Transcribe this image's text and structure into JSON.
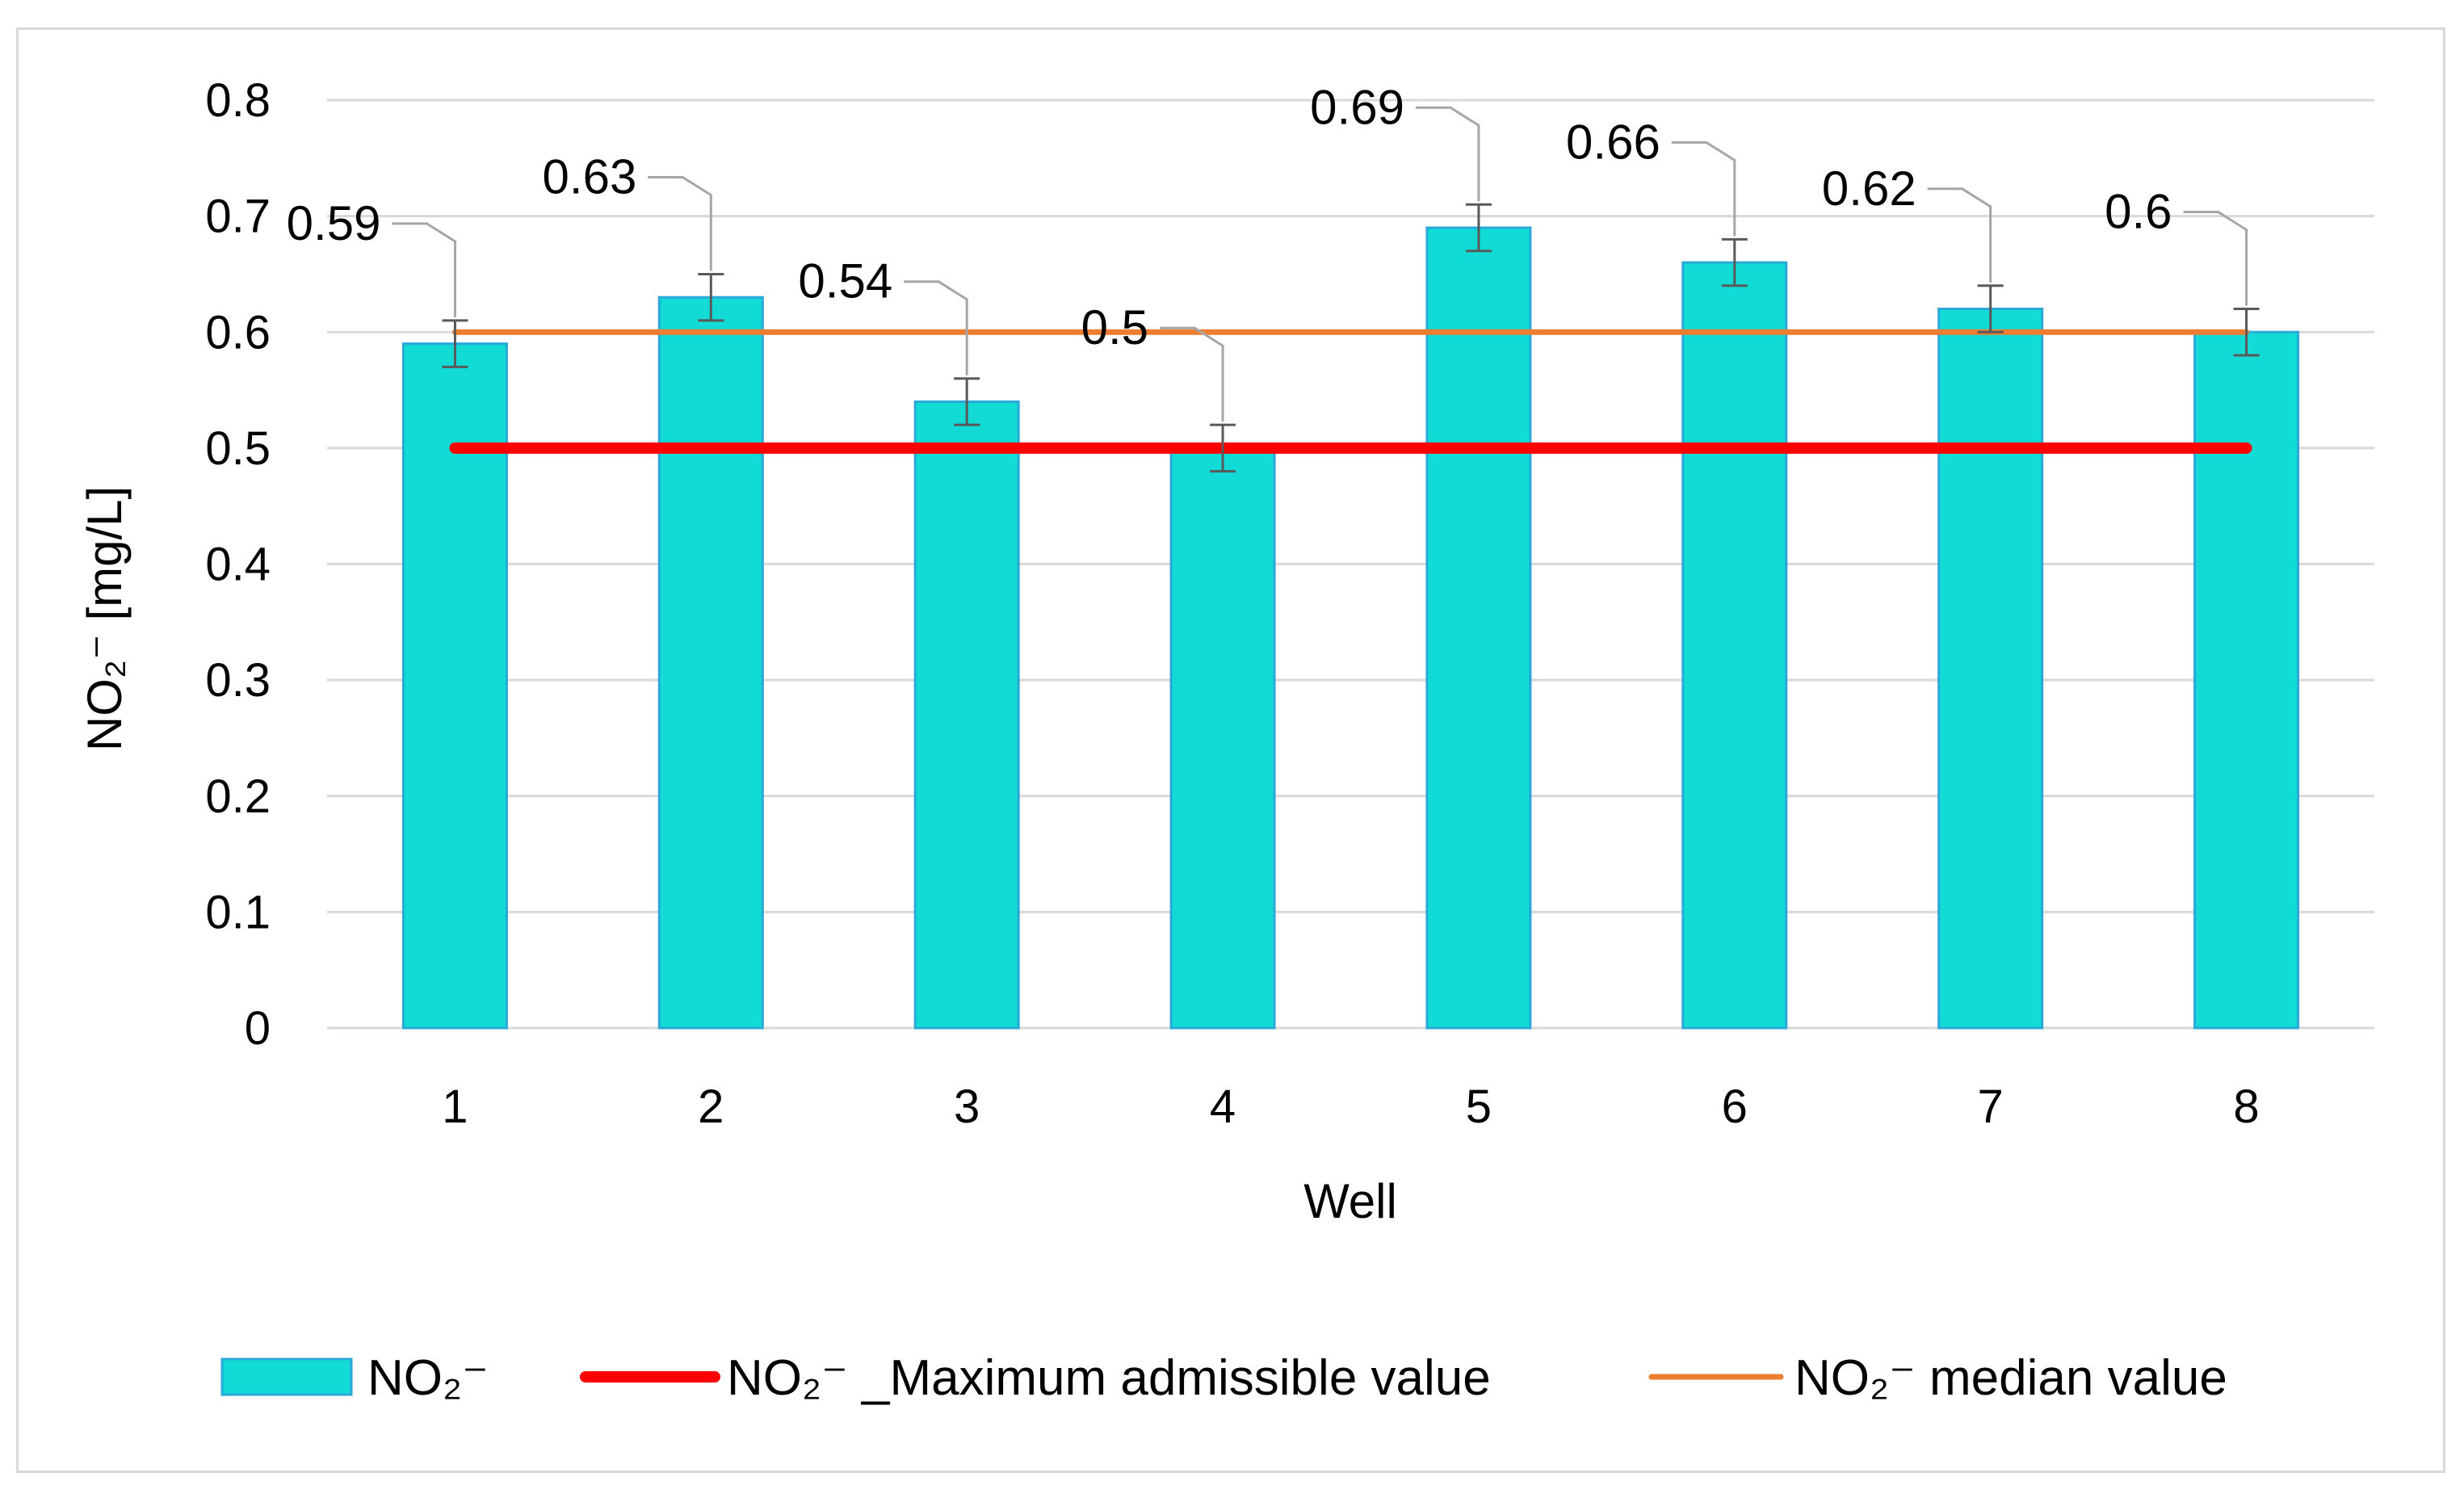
{
  "chart_data": {
    "type": "bar",
    "categories": [
      "1",
      "2",
      "3",
      "4",
      "5",
      "6",
      "7",
      "8"
    ],
    "series": [
      {
        "name": "NO₂⁻",
        "values": [
          0.59,
          0.63,
          0.54,
          0.5,
          0.69,
          0.66,
          0.62,
          0.6
        ],
        "error": [
          0.02,
          0.02,
          0.02,
          0.02,
          0.02,
          0.02,
          0.02,
          0.02
        ],
        "color": "#12DBD6",
        "border_color": "#2AA9D9"
      }
    ],
    "data_labels": [
      "0.59",
      "0.63",
      "0.54",
      "0.5",
      "0.69",
      "0.66",
      "0.62",
      "0.6"
    ],
    "reference_lines": [
      {
        "name": "NO₂⁻ _Maximum admissible value",
        "value": 0.5,
        "color": "#FF0000"
      },
      {
        "name": "NO₂⁻ median value",
        "value": 0.6,
        "color": "#ED7D31"
      }
    ],
    "xlabel": "Well",
    "ylabel": "NO₂⁻ [mg/L]",
    "ylim": [
      0,
      0.8
    ],
    "yticks": [
      "0",
      "0.1",
      "0.2",
      "0.3",
      "0.4",
      "0.5",
      "0.6",
      "0.7",
      "0.8"
    ],
    "grid": true,
    "legend_position": "bottom"
  }
}
